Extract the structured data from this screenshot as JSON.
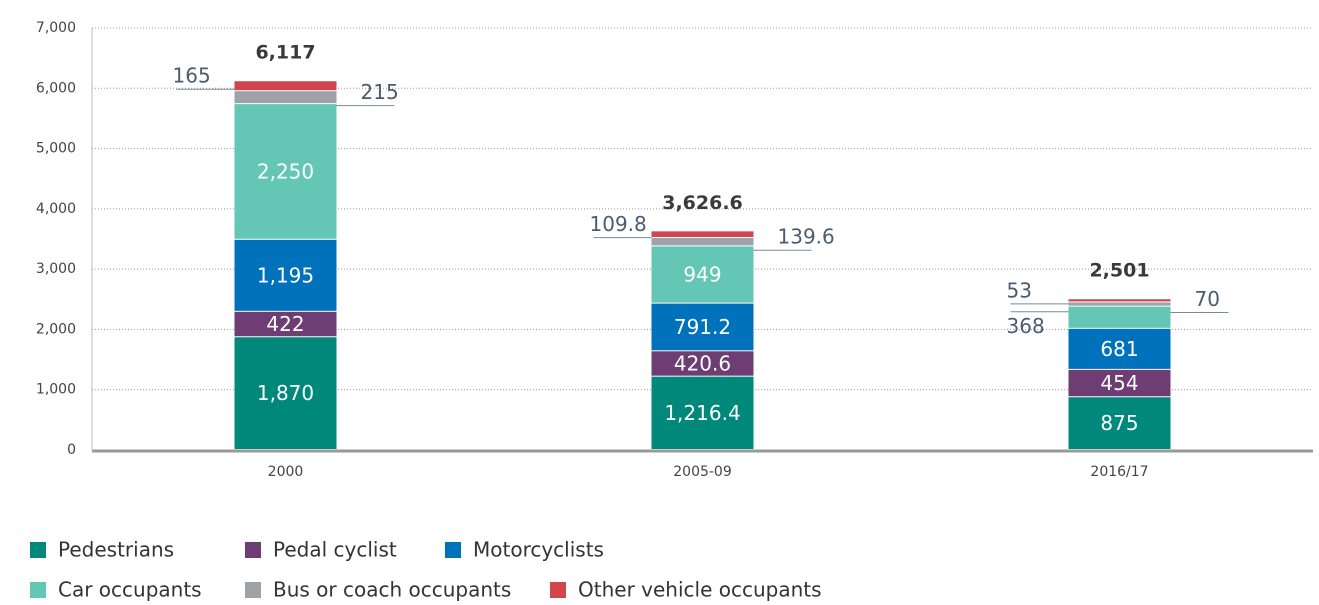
{
  "chart_data": {
    "type": "stacked_bar",
    "categories": [
      "2000",
      "2005-09",
      "2016/17"
    ],
    "series": [
      {
        "name": "Pedestrians",
        "color": "#00897b",
        "values": [
          1870,
          1216.4,
          875
        ],
        "value_labels": [
          "1,870",
          "1,216.4",
          "875"
        ]
      },
      {
        "name": "Pedal cyclist",
        "color": "#6e3d74",
        "values": [
          422,
          420.6,
          454
        ],
        "value_labels": [
          "422",
          "420.6",
          "454"
        ]
      },
      {
        "name": "Motorcyclists",
        "color": "#0072bc",
        "values": [
          1195,
          791.2,
          681
        ],
        "value_labels": [
          "1,195",
          "791.2",
          "681"
        ]
      },
      {
        "name": "Car occupants",
        "color": "#64c6b5",
        "values": [
          2250,
          949,
          368
        ],
        "value_labels": [
          "2,250",
          "949",
          "368"
        ]
      },
      {
        "name": "Bus or coach occupants",
        "color": "#9ea3a8",
        "values": [
          215,
          139.6,
          70
        ],
        "value_labels": [
          "215",
          "139.6",
          "70"
        ]
      },
      {
        "name": "Other vehicle occupants",
        "color": "#d1454f",
        "values": [
          165,
          109.8,
          53
        ],
        "value_labels": [
          "165",
          "109.8",
          "53"
        ]
      }
    ],
    "totals": [
      "6,117",
      "3,626.6",
      "2,501"
    ],
    "ylim": [
      0,
      7000
    ],
    "yticks": [
      0,
      {
        "value": 1000,
        "label": "1,000"
      },
      {
        "value": 2000,
        "label": "2,000"
      },
      {
        "value": 3000,
        "label": "3,000"
      },
      {
        "value": 4000,
        "label": "4,000"
      },
      {
        "value": 5000,
        "label": "5,000"
      },
      {
        "value": 6000,
        "label": "6,000"
      },
      {
        "value": 7000,
        "label": "7,000"
      }
    ],
    "grid": true
  }
}
